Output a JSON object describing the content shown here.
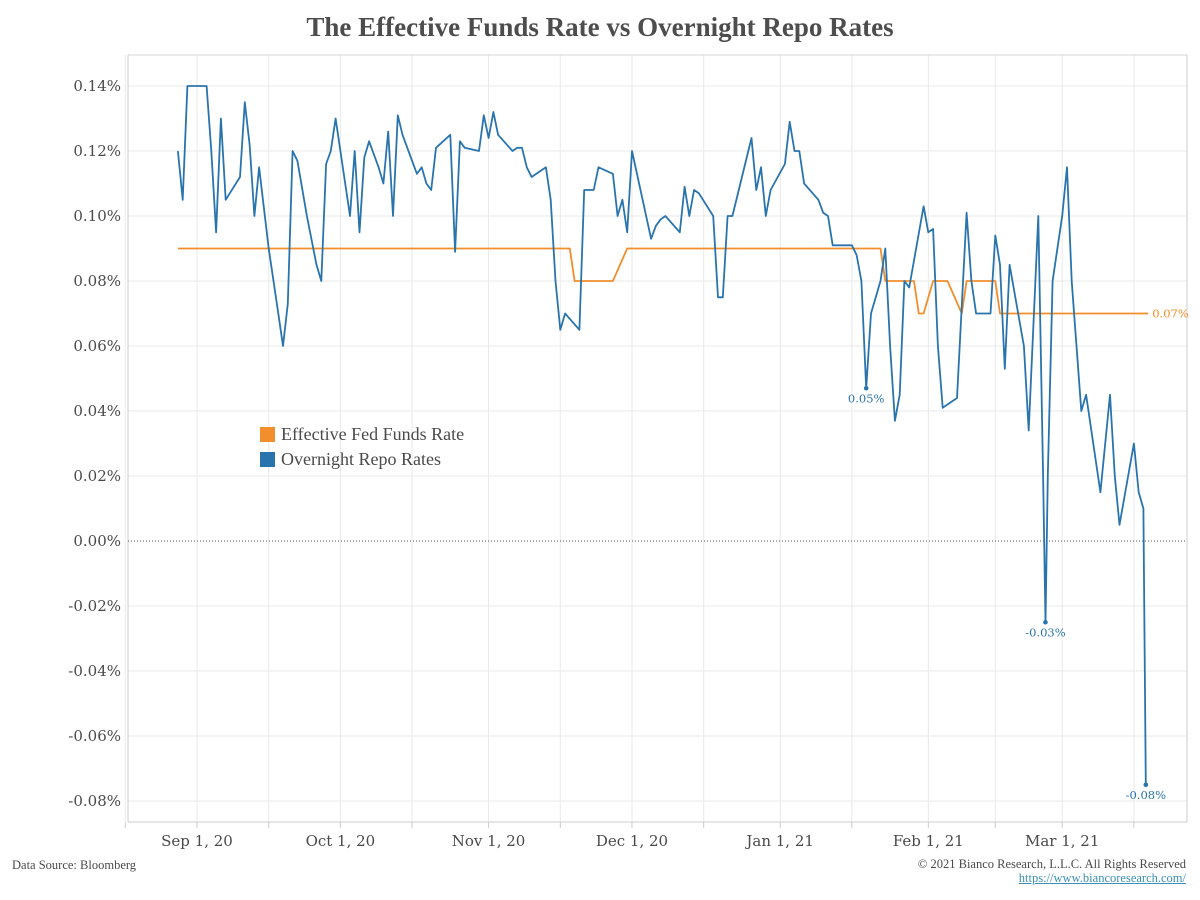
{
  "title": "The Effective Funds Rate vs Overnight Repo Rates",
  "footer": {
    "source": "Data Source: Bloomberg",
    "copyright": "© 2021 Bianco Research, L.L.C. All Rights Reserved",
    "link": "https://www.biancoresearch.com/"
  },
  "colors": {
    "effr": "#f28e2b",
    "repo": "#2a74ae",
    "grid": "#e9e9e9",
    "axis": "#cccccc"
  },
  "chart_data": {
    "type": "line",
    "title": "The Effective Funds Rate vs Overnight Repo Rates",
    "xlabel": "",
    "ylabel": "",
    "x_unit": "days since Sep 1, 2020",
    "xlim": [
      -14,
      199
    ],
    "ylim": [
      -0.086,
      0.148
    ],
    "grid": true,
    "legend_position": "center-left",
    "y_ticks": [
      {
        "v": 0.14,
        "label": "0.14%"
      },
      {
        "v": 0.12,
        "label": "0.12%"
      },
      {
        "v": 0.1,
        "label": "0.10%"
      },
      {
        "v": 0.08,
        "label": "0.08%"
      },
      {
        "v": 0.06,
        "label": "0.06%"
      },
      {
        "v": 0.04,
        "label": "0.04%"
      },
      {
        "v": 0.02,
        "label": "0.02%"
      },
      {
        "v": 0.0,
        "label": "0.00%"
      },
      {
        "v": -0.02,
        "label": "-0.02%"
      },
      {
        "v": -0.04,
        "label": "-0.04%"
      },
      {
        "v": -0.06,
        "label": "-0.06%"
      },
      {
        "v": -0.08,
        "label": "-0.08%"
      }
    ],
    "x_ticks": [
      {
        "d": 0,
        "label": "Sep 1, 20"
      },
      {
        "d": 30,
        "label": "Oct 1, 20"
      },
      {
        "d": 61,
        "label": "Nov 1, 20"
      },
      {
        "d": 91,
        "label": "Dec 1, 20"
      },
      {
        "d": 122,
        "label": "Jan 1, 21"
      },
      {
        "d": 153,
        "label": "Feb 1, 21"
      },
      {
        "d": 181,
        "label": "Mar 1, 21"
      }
    ],
    "x_minor_grid": [
      -15,
      15,
      45,
      76,
      106,
      137,
      167,
      196
    ],
    "series": [
      {
        "name": "Effective Fed Funds Rate",
        "color": "#f28e2b",
        "points": [
          [
            -4,
            0.09
          ],
          [
            78,
            0.09
          ],
          [
            79,
            0.08
          ],
          [
            87,
            0.08
          ],
          [
            90,
            0.09
          ],
          [
            143,
            0.09
          ],
          [
            144,
            0.08
          ],
          [
            150,
            0.08
          ],
          [
            151,
            0.07
          ],
          [
            152,
            0.07
          ],
          [
            154,
            0.08
          ],
          [
            157,
            0.08
          ],
          [
            160,
            0.07
          ],
          [
            161,
            0.08
          ],
          [
            167,
            0.08
          ],
          [
            168,
            0.07
          ],
          [
            199,
            0.07
          ]
        ],
        "end_label": "0.07%"
      },
      {
        "name": "Overnight Repo Rates",
        "color": "#2a74ae",
        "points": [
          [
            -4,
            0.12
          ],
          [
            -3,
            0.105
          ],
          [
            -2,
            0.14
          ],
          [
            0,
            0.14
          ],
          [
            2,
            0.14
          ],
          [
            3,
            0.12
          ],
          [
            4,
            0.095
          ],
          [
            5,
            0.13
          ],
          [
            6,
            0.105
          ],
          [
            9,
            0.112
          ],
          [
            10,
            0.135
          ],
          [
            11,
            0.122
          ],
          [
            12,
            0.1
          ],
          [
            13,
            0.115
          ],
          [
            15,
            0.09
          ],
          [
            17,
            0.07
          ],
          [
            18,
            0.06
          ],
          [
            19,
            0.073
          ],
          [
            20,
            0.12
          ],
          [
            21,
            0.117
          ],
          [
            23,
            0.1
          ],
          [
            25,
            0.085
          ],
          [
            26,
            0.08
          ],
          [
            27,
            0.116
          ],
          [
            28,
            0.12
          ],
          [
            29,
            0.13
          ],
          [
            31,
            0.11
          ],
          [
            32,
            0.1
          ],
          [
            33,
            0.12
          ],
          [
            34,
            0.095
          ],
          [
            35,
            0.118
          ],
          [
            36,
            0.123
          ],
          [
            38,
            0.115
          ],
          [
            39,
            0.11
          ],
          [
            40,
            0.126
          ],
          [
            41,
            0.1
          ],
          [
            42,
            0.131
          ],
          [
            43,
            0.125
          ],
          [
            46,
            0.113
          ],
          [
            47,
            0.115
          ],
          [
            48,
            0.11
          ],
          [
            49,
            0.108
          ],
          [
            50,
            0.121
          ],
          [
            53,
            0.125
          ],
          [
            54,
            0.089
          ],
          [
            55,
            0.123
          ],
          [
            56,
            0.121
          ],
          [
            59,
            0.12
          ],
          [
            60,
            0.131
          ],
          [
            61,
            0.124
          ],
          [
            62,
            0.132
          ],
          [
            63,
            0.125
          ],
          [
            66,
            0.12
          ],
          [
            67,
            0.121
          ],
          [
            68,
            0.121
          ],
          [
            69,
            0.115
          ],
          [
            70,
            0.112
          ],
          [
            73,
            0.115
          ],
          [
            74,
            0.105
          ],
          [
            75,
            0.08
          ],
          [
            76,
            0.065
          ],
          [
            77,
            0.07
          ],
          [
            80,
            0.065
          ],
          [
            81,
            0.108
          ],
          [
            83,
            0.108
          ],
          [
            84,
            0.115
          ],
          [
            87,
            0.113
          ],
          [
            88,
            0.1
          ],
          [
            89,
            0.105
          ],
          [
            90,
            0.095
          ],
          [
            91,
            0.12
          ],
          [
            95,
            0.093
          ],
          [
            96,
            0.097
          ],
          [
            97,
            0.099
          ],
          [
            98,
            0.1
          ],
          [
            101,
            0.095
          ],
          [
            102,
            0.109
          ],
          [
            103,
            0.1
          ],
          [
            104,
            0.108
          ],
          [
            105,
            0.107
          ],
          [
            108,
            0.1
          ],
          [
            109,
            0.075
          ],
          [
            110,
            0.075
          ],
          [
            111,
            0.1
          ],
          [
            112,
            0.1
          ],
          [
            116,
            0.124
          ],
          [
            117,
            0.108
          ],
          [
            118,
            0.115
          ],
          [
            119,
            0.1
          ],
          [
            120,
            0.108
          ],
          [
            123,
            0.116
          ],
          [
            124,
            0.129
          ],
          [
            125,
            0.12
          ],
          [
            126,
            0.12
          ],
          [
            127,
            0.11
          ],
          [
            130,
            0.105
          ],
          [
            131,
            0.101
          ],
          [
            132,
            0.1
          ],
          [
            133,
            0.091
          ],
          [
            134,
            0.091
          ],
          [
            137,
            0.091
          ],
          [
            138,
            0.088
          ],
          [
            139,
            0.08
          ],
          [
            140,
            0.047
          ],
          [
            141,
            0.07
          ],
          [
            143,
            0.08
          ],
          [
            144,
            0.09
          ],
          [
            145,
            0.06
          ],
          [
            146,
            0.037
          ],
          [
            147,
            0.045
          ],
          [
            148,
            0.08
          ],
          [
            149,
            0.078
          ],
          [
            152,
            0.103
          ],
          [
            153,
            0.095
          ],
          [
            154,
            0.096
          ],
          [
            155,
            0.06
          ],
          [
            156,
            0.041
          ],
          [
            159,
            0.044
          ],
          [
            161,
            0.101
          ],
          [
            162,
            0.08
          ],
          [
            163,
            0.07
          ],
          [
            166,
            0.07
          ],
          [
            167,
            0.094
          ],
          [
            168,
            0.085
          ],
          [
            169,
            0.053
          ],
          [
            170,
            0.085
          ],
          [
            173,
            0.06
          ],
          [
            174,
            0.034
          ],
          [
            176,
            0.1
          ],
          [
            177,
            0.02
          ],
          [
            177.5,
            -0.025
          ],
          [
            178,
            0.02
          ],
          [
            179,
            0.08
          ],
          [
            181,
            0.1
          ],
          [
            182,
            0.115
          ],
          [
            183,
            0.08
          ],
          [
            184,
            0.06
          ],
          [
            185,
            0.04
          ],
          [
            186,
            0.045
          ],
          [
            189,
            0.015
          ],
          [
            191,
            0.045
          ],
          [
            192,
            0.02
          ],
          [
            193,
            0.005
          ],
          [
            196,
            0.03
          ],
          [
            197,
            0.015
          ],
          [
            198,
            0.01
          ],
          [
            198.5,
            -0.075
          ]
        ],
        "annotations": [
          {
            "d": 140,
            "v": 0.047,
            "label": "0.05%"
          },
          {
            "d": 177.5,
            "v": -0.025,
            "label": "-0.03%"
          },
          {
            "d": 198.5,
            "v": -0.075,
            "label": "-0.08%"
          }
        ]
      }
    ]
  }
}
